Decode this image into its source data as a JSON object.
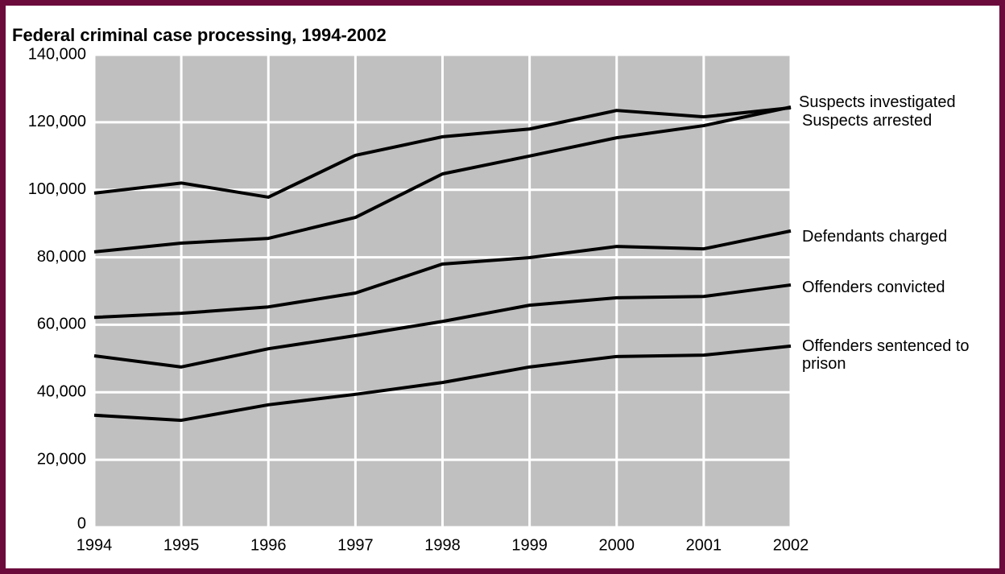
{
  "chart_data": {
    "type": "line",
    "title": "Federal criminal case processing, 1994-2002",
    "x": [
      1994,
      1995,
      1996,
      1997,
      1998,
      1999,
      2000,
      2001,
      2002
    ],
    "xlim": [
      1994,
      2002
    ],
    "xticks": [
      1994,
      1995,
      1996,
      1997,
      1998,
      1999,
      2000,
      2001,
      2002
    ],
    "ylim": [
      0,
      140000
    ],
    "yticks": [
      0,
      {
        "value": 20000,
        "label": "20,000"
      },
      {
        "value": 40000,
        "label": "40,000"
      },
      {
        "value": 60000,
        "label": "60,000"
      },
      {
        "value": 80000,
        "label": "80,000"
      },
      {
        "value": 100000,
        "label": "100,000"
      },
      {
        "value": 120000,
        "label": "120,000"
      },
      {
        "value": 140000,
        "label": "140,000"
      }
    ],
    "grid": true,
    "series": [
      {
        "name": "Suspects investigated",
        "color": "#000000",
        "values": [
          99000,
          102000,
          97800,
          110200,
          115700,
          118000,
          123500,
          121600,
          124300
        ]
      },
      {
        "name": "Suspects arrested",
        "color": "#000000",
        "values": [
          81600,
          84200,
          85600,
          91800,
          104700,
          110000,
          115400,
          119000,
          124500
        ]
      },
      {
        "name": "Defendants charged",
        "color": "#000000",
        "values": [
          62200,
          63400,
          65300,
          69400,
          78000,
          79900,
          83200,
          82500,
          87800
        ]
      },
      {
        "name": "Offenders convicted",
        "color": "#000000",
        "values": [
          50800,
          47500,
          52900,
          56800,
          61000,
          65800,
          68000,
          68400,
          71800
        ]
      },
      {
        "name": "Offenders sentenced to prison",
        "color": "#000000",
        "values": [
          33200,
          31700,
          36300,
          39400,
          42900,
          47500,
          50600,
          51000,
          53700
        ]
      }
    ]
  }
}
